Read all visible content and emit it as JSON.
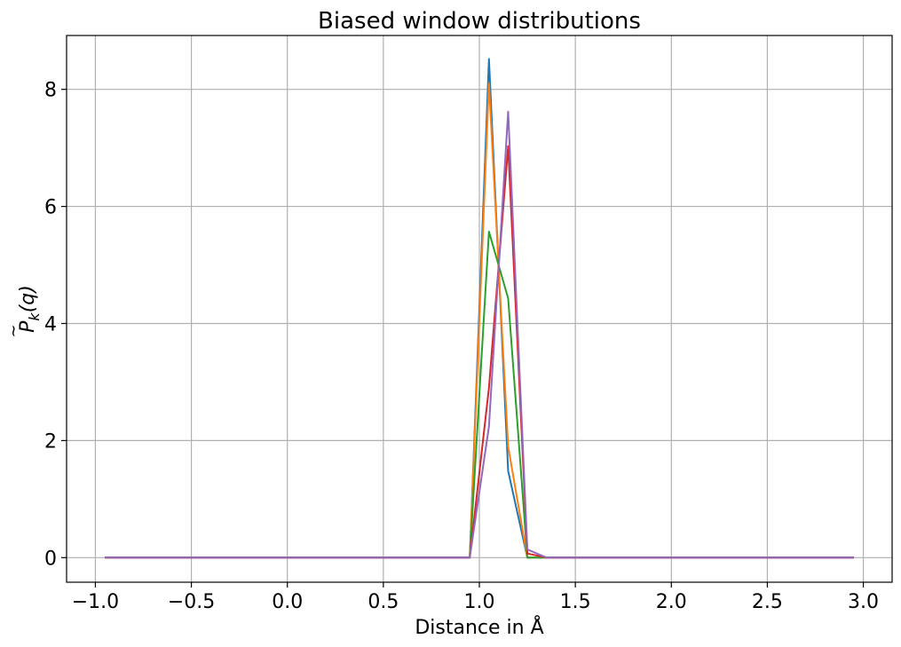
{
  "chart_data": {
    "type": "line",
    "title": "Biased window distributions",
    "xlabel": "Distance in Å",
    "ylabel_parts": {
      "base": "P",
      "accent": "~",
      "sub": "k",
      "arg": "(q)"
    },
    "xlim": [
      -1.15,
      3.15
    ],
    "ylim": [
      -0.42,
      8.92
    ],
    "xticks": [
      -1.0,
      -0.5,
      0.0,
      0.5,
      1.0,
      1.5,
      2.0,
      2.5,
      3.0
    ],
    "xtick_labels": [
      "−1.0",
      "−0.5",
      "0.0",
      "0.5",
      "1.0",
      "1.5",
      "2.0",
      "2.5",
      "3.0"
    ],
    "yticks": [
      0,
      2,
      4,
      6,
      8
    ],
    "ytick_labels": [
      "0",
      "2",
      "4",
      "6",
      "8"
    ],
    "grid": true,
    "legend": false,
    "series": [
      {
        "color": "#1f77b4",
        "points": [
          [
            -0.95,
            0
          ],
          [
            0.95,
            0
          ],
          [
            1.05,
            8.52
          ],
          [
            1.15,
            1.48
          ],
          [
            1.25,
            0
          ],
          [
            1.35,
            0
          ],
          [
            2.95,
            0
          ]
        ]
      },
      {
        "color": "#ff7f0e",
        "points": [
          [
            -0.95,
            0
          ],
          [
            0.95,
            0
          ],
          [
            1.05,
            8.1
          ],
          [
            1.15,
            1.9
          ],
          [
            1.25,
            0
          ],
          [
            1.35,
            0
          ],
          [
            2.95,
            0
          ]
        ]
      },
      {
        "color": "#2ca02c",
        "points": [
          [
            -0.95,
            0
          ],
          [
            0.95,
            0
          ],
          [
            1.05,
            5.57
          ],
          [
            1.15,
            4.43
          ],
          [
            1.25,
            0
          ],
          [
            1.35,
            0
          ],
          [
            2.95,
            0
          ]
        ]
      },
      {
        "color": "#d62728",
        "points": [
          [
            -0.95,
            0
          ],
          [
            0.95,
            0
          ],
          [
            1.05,
            2.9
          ],
          [
            1.15,
            7.03
          ],
          [
            1.25,
            0.07
          ],
          [
            1.35,
            0
          ],
          [
            2.95,
            0
          ]
        ]
      },
      {
        "color": "#9467bd",
        "points": [
          [
            -0.95,
            0
          ],
          [
            0.95,
            0
          ],
          [
            1.05,
            2.24
          ],
          [
            1.15,
            7.62
          ],
          [
            1.25,
            0.14
          ],
          [
            1.35,
            0
          ],
          [
            2.95,
            0
          ]
        ]
      }
    ]
  }
}
